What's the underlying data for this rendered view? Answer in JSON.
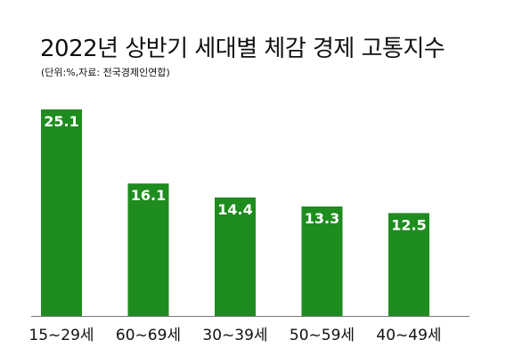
{
  "chart_data": {
    "type": "bar",
    "title": "2022년 상반기 세대별 체감 경제 고통지수",
    "subtitle": "(단위:%,자료: 전국경제인연합)",
    "categories": [
      "15~29세",
      "60~69세",
      "30~39세",
      "50~59세",
      "40~49세"
    ],
    "values": [
      25.1,
      16.1,
      14.4,
      13.3,
      12.5
    ],
    "ylim": [
      0,
      26.5
    ],
    "xlabel": "",
    "ylabel": "",
    "grid": false,
    "bar_color": "#1e8c1e",
    "axis_color": "#777777",
    "data_label_color": "#ffffff"
  }
}
